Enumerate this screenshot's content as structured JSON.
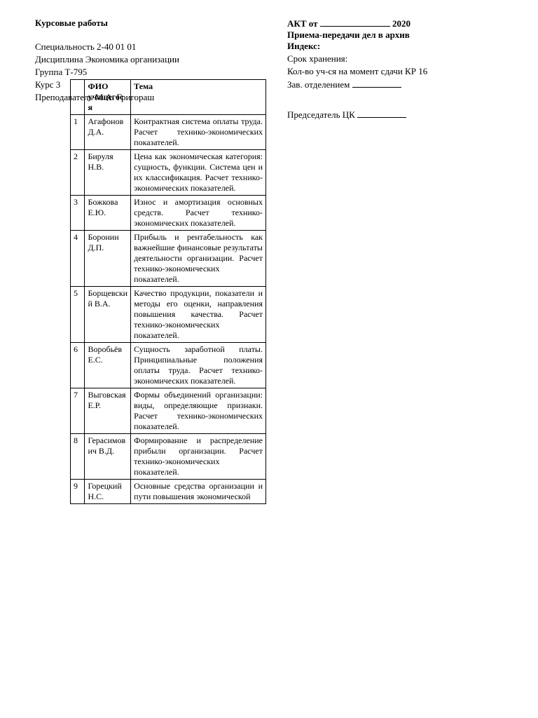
{
  "left": {
    "title": "Курсовые работы",
    "specialty": "Специальность 2-40 01 01",
    "discipline": "Дисциплина Экономика организации",
    "group": "Группа Т-795",
    "course": "Курс 3",
    "teacher": "Преподаватель М.А. Григораш"
  },
  "right": {
    "act_prefix": "АКТ от",
    "act_year": "2020",
    "transfer": "Приема-передачи дел в архив",
    "index": "Индекс:",
    "storage": "Срок хранения:",
    "count": "Кол-во уч-ся на момент сдачи КР 16",
    "head": "Зав. отделением",
    "chair": "Председатель ЦК"
  },
  "table": {
    "header_num": "",
    "header_name": "ФИО учащегося",
    "header_topic": "Тема",
    "rows": [
      {
        "n": "1",
        "name": "Агафонов Д.А.",
        "topic": "Контрактная система оплаты труда. Расчет технико-экономических показателей."
      },
      {
        "n": "2",
        "name": "Бируля Н.В.",
        "topic": "Цена как экономическая категория: сущность, функции. Система цен и их классификация. Расчет технико-экономических показателей."
      },
      {
        "n": "3",
        "name": "Божкова Е.Ю.",
        "topic": "Износ и амортизация основных средств. Расчет технико-экономических показателей."
      },
      {
        "n": "4",
        "name": "Боронин Д.П.",
        "topic": "Прибыль и рентабельность как важнейшие финансовые результаты деятельности организации. Расчет технико-экономических показателей."
      },
      {
        "n": "5",
        "name": "Борщевский В.А.",
        "topic": "Качество продукции, показатели и методы его оценки, направления повышения качества. Расчет технико-экономических показателей."
      },
      {
        "n": "6",
        "name": "Воробьёв Е.С.",
        "topic": "Сущность заработной платы. Принципиальные положения оплаты труда. Расчет технико-экономических показателей."
      },
      {
        "n": "7",
        "name": "Выговская Е.Р.",
        "topic": "Формы объединений организации: виды, определяющие признаки. Расчет технико-экономических показателей."
      },
      {
        "n": "8",
        "name": "Герасимович В.Д.",
        "topic": "Формирование и распределение прибыли организации. Расчет технико-экономических показателей."
      },
      {
        "n": "9",
        "name": "Горецкий Н.С.",
        "topic": "Основные средства организации и пути повышения экономической"
      }
    ]
  }
}
